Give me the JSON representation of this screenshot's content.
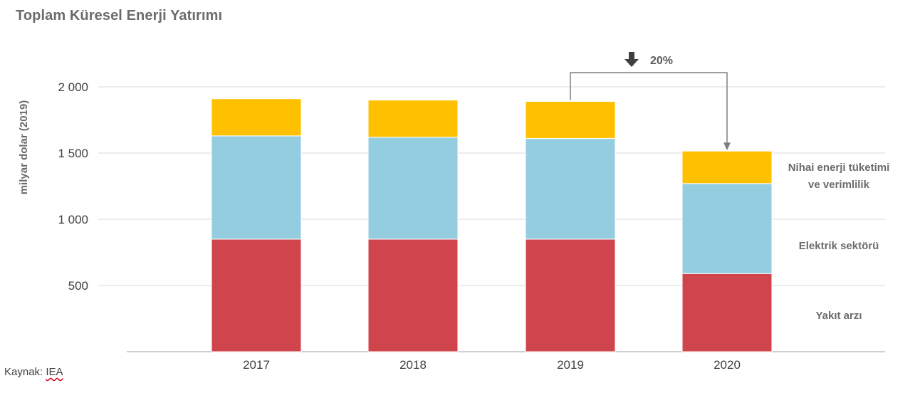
{
  "chart_data": {
    "type": "bar",
    "stacked": true,
    "title": "Toplam Küresel Enerji Yatırımı",
    "ylabel": "milyar dolar (2019)",
    "xlabel": "",
    "categories": [
      "2017",
      "2018",
      "2019",
      "2020"
    ],
    "ylim": [
      0,
      2000
    ],
    "yticks": [
      500,
      1000,
      1500,
      2000
    ],
    "ytick_labels": [
      "500",
      "1 000",
      "1 500",
      "2 000"
    ],
    "grid": true,
    "series": [
      {
        "name": "Yakıt arzı",
        "values": [
          850,
          850,
          850,
          590
        ],
        "color": "#d0454c"
      },
      {
        "name": "Elektrik sektörü",
        "values": [
          780,
          770,
          760,
          680
        ],
        "color": "#94cde0"
      },
      {
        "name": "Nihai enerji tüketimi ve verimlilik",
        "values": [
          280,
          280,
          280,
          245
        ],
        "color": "#ffc000"
      }
    ],
    "legend": {
      "placement": "right",
      "entries": [
        {
          "lines": [
            "Nihai enerji tüketimi",
            "ve verimlilik"
          ]
        },
        {
          "lines": [
            "Elektrik sektörü"
          ]
        },
        {
          "lines": [
            "Yakıt arzı"
          ]
        }
      ]
    },
    "annotation": {
      "text": "20%",
      "from": "2019",
      "to": "2020",
      "arrow_icon": "down-arrow-icon"
    }
  },
  "source": {
    "label": "Kaynak:",
    "name": "IEA"
  }
}
